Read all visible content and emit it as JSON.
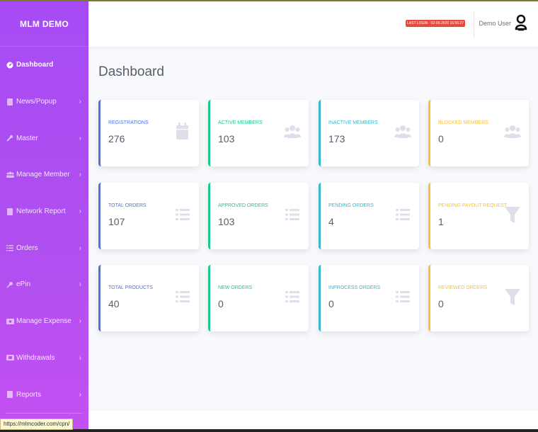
{
  "brand": "MLM DEMO",
  "sidebar": {
    "items": [
      {
        "label": "Dashboard",
        "icon": "dashboard-icon",
        "active": true
      },
      {
        "label": "News/Popup",
        "icon": "file-icon"
      },
      {
        "label": "Master",
        "icon": "wrench-icon"
      },
      {
        "label": "Manage Member",
        "icon": "users-icon"
      },
      {
        "label": "Network Report",
        "icon": "file-icon"
      },
      {
        "label": "Orders",
        "icon": "list-icon"
      },
      {
        "label": "ePin",
        "icon": "pin-icon"
      },
      {
        "label": "Manage Expense",
        "icon": "money-icon"
      },
      {
        "label": "Withdrawals",
        "icon": "wallet-icon"
      },
      {
        "label": "Reports",
        "icon": "file-icon"
      }
    ]
  },
  "topbar": {
    "last_login": "LAST LOGIN : 02-09-2020 16:55:27",
    "user_name": "Demo User"
  },
  "page_title": "Dashboard",
  "cards": {
    "registrations": {
      "title": "REGISTRATIONS",
      "value": "276"
    },
    "active_members": {
      "title": "ACTIVE MEMBERS",
      "value": "103"
    },
    "inactive_members": {
      "title": "INACTIVE MEMBERS",
      "value": "173"
    },
    "blocked_members": {
      "title": "BLOCKED MEMBERS",
      "value": "0"
    },
    "total_orders": {
      "title": "TOTAL ORDERS",
      "value": "107"
    },
    "approved_orders": {
      "title": "APPROVED ORDERS",
      "value": "103"
    },
    "pending_orders": {
      "title": "PENDING ORDERS",
      "value": "4"
    },
    "pending_payout": {
      "title": "PENDING PAYOUT REQUEST",
      "value": "1"
    },
    "total_products": {
      "title": "TOTAL PRODUCTS",
      "value": "40"
    },
    "new_orders": {
      "title": "NEW ORDERS",
      "value": "0"
    },
    "inprocess_orders": {
      "title": "INPROCESS ORDERS",
      "value": "0"
    },
    "reviewed_orders": {
      "title": "REVIEWED ORDERS",
      "value": "0"
    }
  },
  "status_url": "https://mlmcoder.com/cpn/",
  "colors": {
    "sidebar": "#a64bf4",
    "primary": "#4e73df",
    "success": "#1cc88a",
    "info": "#36b9cc",
    "warning": "#f6c23e",
    "icon_gray": "#dddfeb",
    "danger": "#e74a3b"
  }
}
